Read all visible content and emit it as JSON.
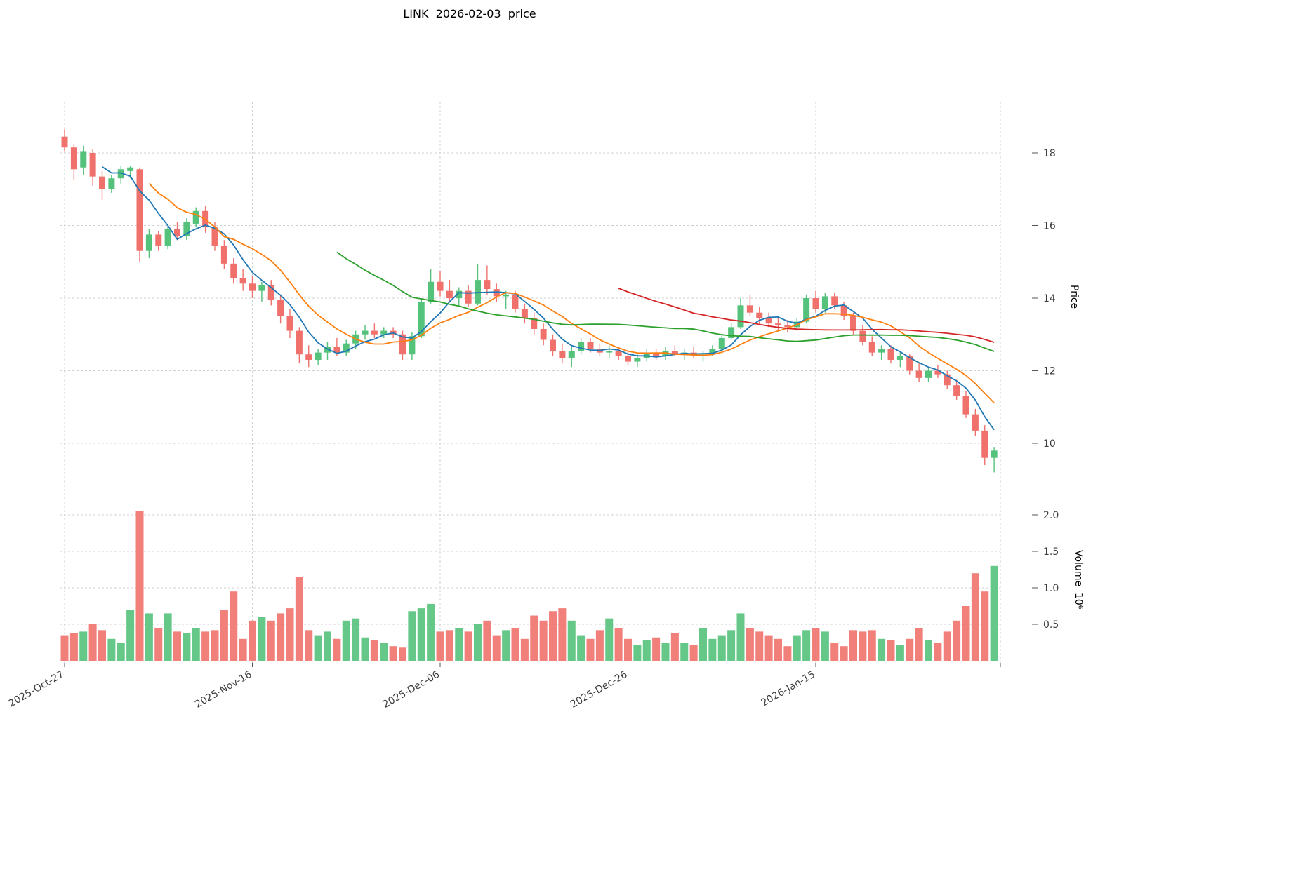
{
  "title": "LINK  2026-02-03  price",
  "axes": {
    "price_label": "Price",
    "volume_label": "Volume  10⁶",
    "price_ticks": [
      10,
      12,
      14,
      16,
      18
    ],
    "volume_ticks": [
      0.5,
      1.0,
      1.5,
      2.0
    ],
    "x_ticks": [
      {
        "label": "2025-Oct-27",
        "index": 0
      },
      {
        "label": "2025-Nov-16",
        "index": 20
      },
      {
        "label": "2025-Dec-06",
        "index": 40
      },
      {
        "label": "2025-Dec-26",
        "index": 60
      },
      {
        "label": "2026-Jan-15",
        "index": 80
      }
    ]
  },
  "colors": {
    "up": "#54c27b",
    "down": "#f0716c",
    "grid": "#d0d0d0",
    "tick_text": "#3d3d3d",
    "tick_mark": "#555555"
  },
  "chart_data": {
    "type": "candlestick+volume",
    "symbol": "LINK",
    "as_of_date": "2026-02-03",
    "title": "LINK  2026-02-03  price",
    "price_axis_range": [
      9.0,
      19.2
    ],
    "volume_axis_range_millions": [
      0,
      2.2
    ],
    "grid": true,
    "moving_averages": [
      {
        "window": 5,
        "color": "#1f77b4"
      },
      {
        "window": 10,
        "color": "#ff7f0e"
      },
      {
        "window": 30,
        "color": "#2ca02c"
      },
      {
        "window": 60,
        "color": "#d62728"
      }
    ],
    "candle_fields": [
      "date",
      "open",
      "high",
      "low",
      "close",
      "volume_millions"
    ],
    "candles": [
      [
        "2025-10-27",
        18.45,
        18.65,
        18.05,
        18.15,
        0.35
      ],
      [
        "2025-10-28",
        18.15,
        18.25,
        17.25,
        17.55,
        0.38
      ],
      [
        "2025-10-29",
        17.6,
        18.2,
        17.4,
        18.05,
        0.4
      ],
      [
        "2025-10-30",
        18.0,
        18.1,
        17.1,
        17.35,
        0.5
      ],
      [
        "2025-10-31",
        17.35,
        17.5,
        16.7,
        17.0,
        0.42
      ],
      [
        "2025-11-01",
        17.0,
        17.4,
        16.9,
        17.3,
        0.3
      ],
      [
        "2025-11-02",
        17.3,
        17.65,
        17.15,
        17.55,
        0.25
      ],
      [
        "2025-11-03",
        17.5,
        17.65,
        17.3,
        17.6,
        0.7
      ],
      [
        "2025-11-04",
        17.55,
        17.6,
        15.0,
        15.3,
        2.05
      ],
      [
        "2025-11-05",
        15.3,
        15.9,
        15.1,
        15.75,
        0.65
      ],
      [
        "2025-11-06",
        15.75,
        15.85,
        15.3,
        15.45,
        0.45
      ],
      [
        "2025-11-07",
        15.45,
        16.0,
        15.35,
        15.9,
        0.65
      ],
      [
        "2025-11-08",
        15.9,
        16.1,
        15.6,
        15.7,
        0.4
      ],
      [
        "2025-11-09",
        15.7,
        16.2,
        15.6,
        16.1,
        0.38
      ],
      [
        "2025-11-10",
        16.05,
        16.5,
        15.95,
        16.4,
        0.45
      ],
      [
        "2025-11-11",
        16.4,
        16.55,
        15.8,
        15.95,
        0.4
      ],
      [
        "2025-11-12",
        15.95,
        16.1,
        15.3,
        15.45,
        0.42
      ],
      [
        "2025-11-13",
        15.45,
        15.6,
        14.8,
        14.95,
        0.7
      ],
      [
        "2025-11-14",
        14.95,
        15.1,
        14.4,
        14.55,
        0.95
      ],
      [
        "2025-11-15",
        14.55,
        14.8,
        14.2,
        14.4,
        0.3
      ],
      [
        "2025-11-16",
        14.4,
        14.6,
        14.0,
        14.2,
        0.55
      ],
      [
        "2025-11-17",
        14.2,
        14.45,
        13.9,
        14.35,
        0.6
      ],
      [
        "2025-11-18",
        14.35,
        14.5,
        13.8,
        13.95,
        0.55
      ],
      [
        "2025-11-19",
        13.95,
        14.1,
        13.3,
        13.5,
        0.65
      ],
      [
        "2025-11-20",
        13.5,
        13.7,
        12.9,
        13.1,
        0.72
      ],
      [
        "2025-11-21",
        13.1,
        13.2,
        12.2,
        12.45,
        1.15
      ],
      [
        "2025-11-22",
        12.45,
        12.7,
        12.1,
        12.3,
        0.42
      ],
      [
        "2025-11-23",
        12.3,
        12.6,
        12.15,
        12.5,
        0.35
      ],
      [
        "2025-11-24",
        12.5,
        12.8,
        12.3,
        12.65,
        0.4
      ],
      [
        "2025-11-25",
        12.65,
        12.9,
        12.4,
        12.5,
        0.3
      ],
      [
        "2025-11-26",
        12.5,
        12.85,
        12.4,
        12.75,
        0.55
      ],
      [
        "2025-11-27",
        12.75,
        13.1,
        12.6,
        13.0,
        0.58
      ],
      [
        "2025-11-28",
        13.0,
        13.25,
        12.85,
        13.1,
        0.32
      ],
      [
        "2025-11-29",
        13.1,
        13.3,
        12.9,
        13.0,
        0.28
      ],
      [
        "2025-11-30",
        13.0,
        13.2,
        12.9,
        13.1,
        0.25
      ],
      [
        "2025-12-01",
        13.1,
        13.2,
        12.9,
        13.0,
        0.2
      ],
      [
        "2025-12-02",
        13.0,
        13.1,
        12.3,
        12.45,
        0.18
      ],
      [
        "2025-12-03",
        12.45,
        13.05,
        12.3,
        12.95,
        0.68
      ],
      [
        "2025-12-04",
        12.95,
        14.0,
        12.9,
        13.9,
        0.72
      ],
      [
        "2025-12-05",
        13.9,
        14.8,
        13.85,
        14.45,
        0.78
      ],
      [
        "2025-12-06",
        14.45,
        14.75,
        14.05,
        14.2,
        0.4
      ],
      [
        "2025-12-07",
        14.2,
        14.5,
        13.9,
        14.0,
        0.42
      ],
      [
        "2025-12-08",
        14.0,
        14.3,
        13.8,
        14.2,
        0.45
      ],
      [
        "2025-12-09",
        14.2,
        14.35,
        13.75,
        13.85,
        0.4
      ],
      [
        "2025-12-10",
        13.85,
        14.95,
        13.8,
        14.5,
        0.5
      ],
      [
        "2025-12-11",
        14.5,
        14.9,
        14.1,
        14.25,
        0.55
      ],
      [
        "2025-12-12",
        14.25,
        14.4,
        13.9,
        14.05,
        0.35
      ],
      [
        "2025-12-13",
        14.05,
        14.2,
        13.7,
        14.1,
        0.42
      ],
      [
        "2025-12-14",
        14.1,
        14.2,
        13.6,
        13.7,
        0.45
      ],
      [
        "2025-12-15",
        13.7,
        13.85,
        13.3,
        13.45,
        0.3
      ],
      [
        "2025-12-16",
        13.45,
        13.6,
        13.0,
        13.15,
        0.62
      ],
      [
        "2025-12-17",
        13.15,
        13.3,
        12.7,
        12.85,
        0.55
      ],
      [
        "2025-12-18",
        12.85,
        13.0,
        12.4,
        12.55,
        0.68
      ],
      [
        "2025-12-19",
        12.55,
        12.75,
        12.2,
        12.35,
        0.72
      ],
      [
        "2025-12-20",
        12.35,
        12.65,
        12.1,
        12.55,
        0.55
      ],
      [
        "2025-12-21",
        12.55,
        12.9,
        12.45,
        12.8,
        0.35
      ],
      [
        "2025-12-22",
        12.8,
        12.9,
        12.5,
        12.6,
        0.3
      ],
      [
        "2025-12-23",
        12.6,
        12.75,
        12.4,
        12.5,
        0.42
      ],
      [
        "2025-12-24",
        12.5,
        12.7,
        12.35,
        12.55,
        0.58
      ],
      [
        "2025-12-25",
        12.55,
        12.65,
        12.3,
        12.4,
        0.45
      ],
      [
        "2025-12-26",
        12.4,
        12.55,
        12.15,
        12.25,
        0.3
      ],
      [
        "2025-12-27",
        12.25,
        12.45,
        12.1,
        12.35,
        0.22
      ],
      [
        "2025-12-28",
        12.35,
        12.6,
        12.25,
        12.5,
        0.28
      ],
      [
        "2025-12-29",
        12.5,
        12.6,
        12.3,
        12.4,
        0.32
      ],
      [
        "2025-12-30",
        12.4,
        12.65,
        12.3,
        12.55,
        0.25
      ],
      [
        "2025-12-31",
        12.55,
        12.7,
        12.4,
        12.45,
        0.38
      ],
      [
        "2026-01-01",
        12.45,
        12.6,
        12.3,
        12.5,
        0.25
      ],
      [
        "2026-01-02",
        12.5,
        12.65,
        12.35,
        12.4,
        0.22
      ],
      [
        "2026-01-03",
        12.4,
        12.55,
        12.25,
        12.45,
        0.45
      ],
      [
        "2026-01-04",
        12.45,
        12.7,
        12.4,
        12.6,
        0.3
      ],
      [
        "2026-01-05",
        12.6,
        13.0,
        12.55,
        12.9,
        0.35
      ],
      [
        "2026-01-06",
        12.9,
        13.3,
        12.85,
        13.2,
        0.42
      ],
      [
        "2026-01-07",
        13.2,
        14.0,
        13.15,
        13.8,
        0.65
      ],
      [
        "2026-01-08",
        13.8,
        14.1,
        13.5,
        13.6,
        0.45
      ],
      [
        "2026-01-09",
        13.6,
        13.75,
        13.3,
        13.45,
        0.4
      ],
      [
        "2026-01-10",
        13.45,
        13.6,
        13.2,
        13.3,
        0.35
      ],
      [
        "2026-01-11",
        13.3,
        13.5,
        13.1,
        13.25,
        0.3
      ],
      [
        "2026-01-12",
        13.25,
        13.4,
        13.05,
        13.2,
        0.2
      ],
      [
        "2026-01-13",
        13.2,
        13.45,
        13.1,
        13.35,
        0.35
      ],
      [
        "2026-01-14",
        13.35,
        14.1,
        13.3,
        14.0,
        0.42
      ],
      [
        "2026-01-15",
        14.0,
        14.2,
        13.6,
        13.7,
        0.45
      ],
      [
        "2026-01-16",
        13.7,
        14.15,
        13.6,
        14.05,
        0.4
      ],
      [
        "2026-01-17",
        14.05,
        14.15,
        13.7,
        13.8,
        0.25
      ],
      [
        "2026-01-18",
        13.8,
        13.9,
        13.4,
        13.5,
        0.2
      ],
      [
        "2026-01-19",
        13.5,
        13.6,
        13.0,
        13.1,
        0.42
      ],
      [
        "2026-01-20",
        13.1,
        13.25,
        12.7,
        12.8,
        0.4
      ],
      [
        "2026-01-21",
        12.8,
        12.95,
        12.4,
        12.5,
        0.42
      ],
      [
        "2026-01-22",
        12.5,
        12.7,
        12.3,
        12.6,
        0.3
      ],
      [
        "2026-01-23",
        12.6,
        12.7,
        12.2,
        12.3,
        0.28
      ],
      [
        "2026-01-24",
        12.3,
        12.5,
        12.1,
        12.4,
        0.22
      ],
      [
        "2026-01-25",
        12.4,
        12.45,
        11.9,
        12.0,
        0.3
      ],
      [
        "2026-01-26",
        12.0,
        12.2,
        11.7,
        11.8,
        0.45
      ],
      [
        "2026-01-27",
        11.8,
        12.1,
        11.7,
        12.0,
        0.28
      ],
      [
        "2026-01-28",
        12.0,
        12.15,
        11.8,
        11.9,
        0.25
      ],
      [
        "2026-01-29",
        11.9,
        12.0,
        11.5,
        11.6,
        0.4
      ],
      [
        "2026-01-30",
        11.6,
        11.75,
        11.2,
        11.3,
        0.55
      ],
      [
        "2026-01-31",
        11.3,
        11.45,
        10.7,
        10.8,
        0.75
      ],
      [
        "2026-02-01",
        10.8,
        10.95,
        10.2,
        10.35,
        1.2
      ],
      [
        "2026-02-02",
        10.35,
        10.5,
        9.4,
        9.6,
        0.95
      ],
      [
        "2026-02-03",
        9.6,
        9.9,
        9.2,
        9.8,
        1.3
      ]
    ]
  }
}
